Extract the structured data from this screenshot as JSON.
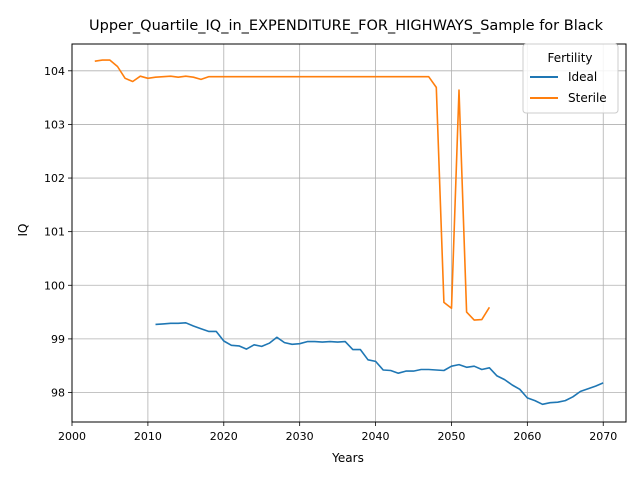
{
  "chart_data": {
    "type": "line",
    "title": "Upper_Quartile_IQ_in_EXPENDITURE_FOR_HIGHWAYS_Sample for Black",
    "xlabel": "Years",
    "ylabel": "IQ",
    "xlim": [
      2000,
      2073
    ],
    "ylim": [
      97.45,
      104.5
    ],
    "x_ticks": [
      2000,
      2010,
      2020,
      2030,
      2040,
      2050,
      2060,
      2070
    ],
    "y_ticks": [
      98,
      99,
      100,
      101,
      102,
      103,
      104
    ],
    "grid": true,
    "legend": {
      "title": "Fertility",
      "placement": "upper right"
    },
    "series": [
      {
        "name": "Ideal",
        "color": "#1f77b4",
        "x": [
          2011,
          2012,
          2013,
          2014,
          2015,
          2016,
          2017,
          2018,
          2019,
          2020,
          2021,
          2022,
          2023,
          2024,
          2025,
          2026,
          2027,
          2028,
          2029,
          2030,
          2031,
          2032,
          2033,
          2034,
          2035,
          2036,
          2037,
          2038,
          2039,
          2040,
          2041,
          2042,
          2043,
          2044,
          2045,
          2046,
          2047,
          2048,
          2049,
          2050,
          2051,
          2052,
          2053,
          2054,
          2055,
          2056,
          2057,
          2058,
          2059,
          2060,
          2061,
          2062,
          2063,
          2064,
          2065,
          2066,
          2067,
          2068,
          2069,
          2070
        ],
        "values": [
          99.27,
          99.28,
          99.29,
          99.29,
          99.3,
          99.24,
          99.19,
          99.14,
          99.14,
          98.96,
          98.88,
          98.87,
          98.81,
          98.89,
          98.86,
          98.92,
          99.03,
          98.93,
          98.9,
          98.91,
          98.95,
          98.95,
          98.94,
          98.95,
          98.94,
          98.95,
          98.8,
          98.8,
          98.61,
          98.58,
          98.42,
          98.41,
          98.36,
          98.4,
          98.4,
          98.43,
          98.43,
          98.42,
          98.41,
          98.49,
          98.52,
          98.47,
          98.49,
          98.43,
          98.46,
          98.31,
          98.24,
          98.14,
          98.06,
          97.9,
          97.85,
          97.78,
          97.81,
          97.82,
          97.85,
          97.92,
          98.02,
          98.07,
          98.12,
          98.18
        ]
      },
      {
        "name": "Sterile",
        "color": "#ff7f0e",
        "x": [
          2003,
          2004,
          2005,
          2006,
          2007,
          2008,
          2009,
          2010,
          2011,
          2012,
          2013,
          2014,
          2015,
          2016,
          2017,
          2018,
          2019,
          2020,
          2021,
          2022,
          2023,
          2024,
          2025,
          2026,
          2027,
          2028,
          2029,
          2030,
          2031,
          2032,
          2033,
          2034,
          2035,
          2036,
          2037,
          2038,
          2039,
          2040,
          2041,
          2042,
          2043,
          2044,
          2045,
          2046,
          2047,
          2048,
          2049,
          2050,
          2051,
          2052,
          2053,
          2054,
          2055
        ],
        "values": [
          104.18,
          104.2,
          104.2,
          104.08,
          103.86,
          103.8,
          103.9,
          103.86,
          103.88,
          103.89,
          103.9,
          103.88,
          103.9,
          103.88,
          103.84,
          103.89,
          103.89,
          103.89,
          103.89,
          103.89,
          103.89,
          103.89,
          103.89,
          103.89,
          103.89,
          103.89,
          103.89,
          103.89,
          103.89,
          103.89,
          103.89,
          103.89,
          103.89,
          103.89,
          103.89,
          103.89,
          103.89,
          103.89,
          103.89,
          103.89,
          103.89,
          103.89,
          103.89,
          103.89,
          103.89,
          103.69,
          99.68,
          99.57,
          103.64,
          99.5,
          99.35,
          99.36,
          99.59
        ]
      }
    ]
  }
}
